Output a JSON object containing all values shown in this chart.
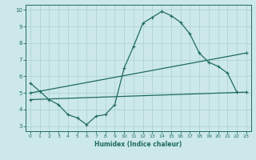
{
  "xlabel": "Humidex (Indice chaleur)",
  "xlim": [
    -0.5,
    23.5
  ],
  "ylim": [
    2.7,
    10.3
  ],
  "xticks": [
    0,
    1,
    2,
    3,
    4,
    5,
    6,
    7,
    8,
    9,
    10,
    11,
    12,
    13,
    14,
    15,
    16,
    17,
    18,
    19,
    20,
    21,
    22,
    23
  ],
  "yticks": [
    3,
    4,
    5,
    6,
    7,
    8,
    9,
    10
  ],
  "bg_color": "#cce8ea",
  "line_color": "#1f6b60",
  "grid_color": "#aacfd2",
  "curve1_x": [
    0,
    1,
    2,
    3,
    4,
    5,
    6,
    7,
    8,
    9,
    10,
    11,
    12,
    13,
    14,
    15,
    16,
    17,
    18,
    19,
    20,
    21,
    22
  ],
  "curve1_y": [
    5.6,
    5.1,
    4.6,
    4.3,
    3.7,
    3.5,
    3.1,
    3.6,
    3.7,
    4.3,
    6.5,
    7.8,
    9.2,
    9.55,
    9.9,
    9.65,
    9.25,
    8.55,
    7.4,
    6.85,
    6.6,
    6.2,
    5.05
  ],
  "curve2_x": [
    0,
    23
  ],
  "curve2_y": [
    5.0,
    7.4
  ],
  "curve3_x": [
    0,
    23
  ],
  "curve3_y": [
    4.6,
    5.05
  ]
}
